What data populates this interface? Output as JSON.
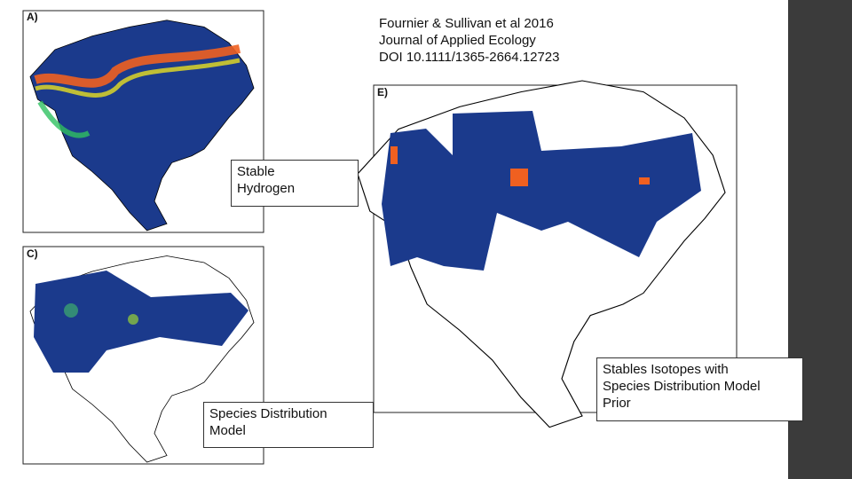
{
  "citation": {
    "lines": [
      "Fournier & Sullivan et al 2016",
      "Journal of Applied Ecology",
      "DOI 10.1111/1365-2664.12723"
    ]
  },
  "panels": [
    {
      "label": "A)",
      "caption": [
        "Stable",
        "Hydrogen"
      ]
    },
    {
      "label": "C)",
      "caption": [
        "Species Distribution",
        "Model"
      ]
    },
    {
      "label": "E)",
      "caption": [
        "Stables Isotopes with",
        "Species Distribution Model",
        "Prior"
      ]
    }
  ]
}
